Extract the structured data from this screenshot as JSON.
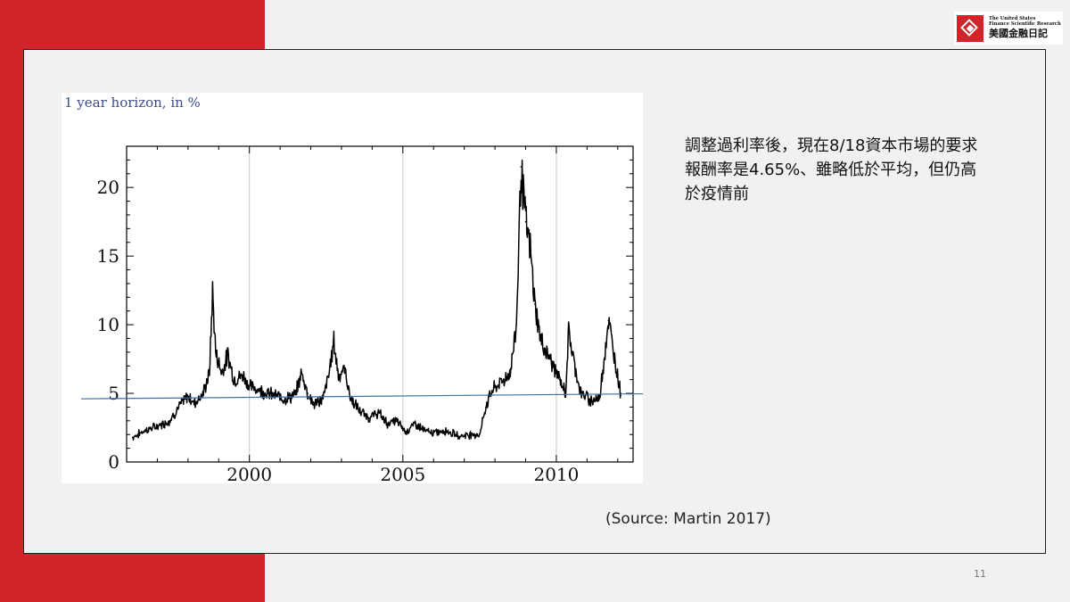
{
  "logo": {
    "en_line1": "The United States",
    "en_line2": "Finance Scientific Research",
    "zh": "美國金融日記"
  },
  "slide": {
    "note": "調整過利率後，現在8/18資本市場的要求報酬率是4.65%、雖略低於平均，但仍高於疫情前",
    "source": "(Source: Martin 2017)",
    "page_number": "11"
  },
  "colors": {
    "brand_red": "#d0232a",
    "series": "#000000",
    "reference_line": "#3f6fa8"
  },
  "chart_data": {
    "type": "line",
    "title": "1 year horizon, in %",
    "xlabel": "",
    "ylabel": "",
    "xlim": [
      1996.0,
      2012.5
    ],
    "ylim": [
      0,
      23
    ],
    "x_ticks": [
      2000,
      2005,
      2010
    ],
    "x_tick_labels": [
      "2000",
      "2005",
      "2010"
    ],
    "y_ticks": [
      0,
      5,
      10,
      15,
      20
    ],
    "y_tick_labels": [
      "0",
      "5",
      "10",
      "15",
      "20"
    ],
    "grid": "vertical lines at labeled years",
    "series": [
      {
        "values": [
          [
            1996.2,
            1.8
          ],
          [
            1996.6,
            2.3
          ],
          [
            1997.0,
            2.6
          ],
          [
            1997.4,
            3.0
          ],
          [
            1997.7,
            4.0
          ],
          [
            1998.0,
            4.8
          ],
          [
            1998.2,
            4.3
          ],
          [
            1998.5,
            5.0
          ],
          [
            1998.7,
            6.5
          ],
          [
            1998.8,
            12.4
          ],
          [
            1998.9,
            8.0
          ],
          [
            1999.1,
            6.5
          ],
          [
            1999.3,
            7.8
          ],
          [
            1999.5,
            6.0
          ],
          [
            1999.8,
            6.3
          ],
          [
            2000.0,
            5.5
          ],
          [
            2000.3,
            5.3
          ],
          [
            2000.6,
            5.0
          ],
          [
            2000.9,
            4.8
          ],
          [
            2001.2,
            4.6
          ],
          [
            2001.5,
            4.9
          ],
          [
            2001.7,
            6.5
          ],
          [
            2001.9,
            5.0
          ],
          [
            2002.1,
            4.2
          ],
          [
            2002.4,
            4.6
          ],
          [
            2002.6,
            6.5
          ],
          [
            2002.75,
            8.8
          ],
          [
            2002.9,
            6.3
          ],
          [
            2003.1,
            6.8
          ],
          [
            2003.3,
            4.6
          ],
          [
            2003.6,
            3.7
          ],
          [
            2003.9,
            3.2
          ],
          [
            2004.2,
            3.6
          ],
          [
            2004.5,
            2.8
          ],
          [
            2004.8,
            3.0
          ],
          [
            2005.1,
            2.2
          ],
          [
            2005.4,
            2.8
          ],
          [
            2005.7,
            2.3
          ],
          [
            2006.0,
            2.1
          ],
          [
            2006.4,
            2.3
          ],
          [
            2006.8,
            1.9
          ],
          [
            2007.2,
            2.0
          ],
          [
            2007.5,
            2.0
          ],
          [
            2007.7,
            4.0
          ],
          [
            2007.9,
            5.2
          ],
          [
            2008.1,
            5.6
          ],
          [
            2008.3,
            6.0
          ],
          [
            2008.5,
            6.5
          ],
          [
            2008.7,
            10.0
          ],
          [
            2008.85,
            21.5
          ],
          [
            2009.0,
            17.5
          ],
          [
            2009.15,
            15.5
          ],
          [
            2009.3,
            11.5
          ],
          [
            2009.5,
            8.8
          ],
          [
            2009.8,
            7.5
          ],
          [
            2010.1,
            6.0
          ],
          [
            2010.3,
            5.0
          ],
          [
            2010.4,
            9.5
          ],
          [
            2010.6,
            7.0
          ],
          [
            2010.8,
            5.0
          ],
          [
            2011.1,
            4.5
          ],
          [
            2011.4,
            4.6
          ],
          [
            2011.7,
            10.3
          ],
          [
            2011.9,
            7.5
          ],
          [
            2012.1,
            5.0
          ]
        ]
      }
    ],
    "reference_line": {
      "y_start": 4.6,
      "y_end": 5.0
    }
  }
}
